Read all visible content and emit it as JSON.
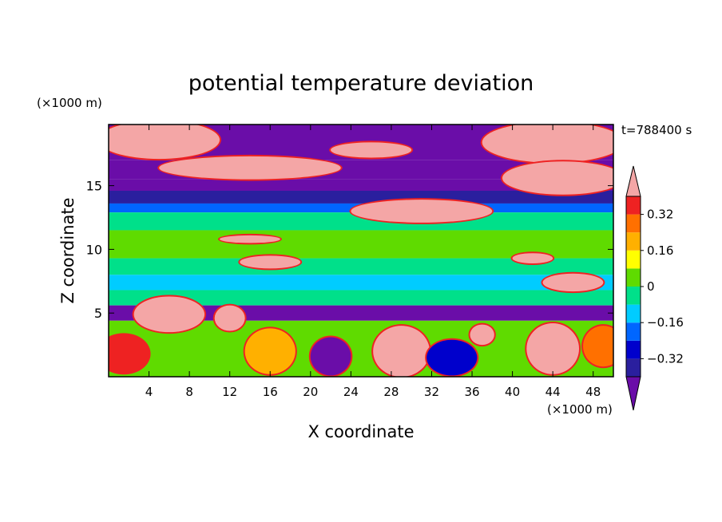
{
  "chart_data": {
    "type": "heatmap",
    "title": "potential temperature deviation",
    "xlabel": "X coordinate",
    "ylabel": "Z coordinate",
    "x_unit": "(×1000 m)",
    "y_unit": "(×1000 m)",
    "time_label": "t=788400 s",
    "xlim": [
      0,
      50
    ],
    "ylim": [
      0,
      19.8
    ],
    "x_ticks": [
      4,
      8,
      12,
      16,
      20,
      24,
      28,
      32,
      36,
      40,
      44,
      48
    ],
    "y_ticks": [
      5,
      10,
      15
    ],
    "colorbar": {
      "levels": [
        -0.48,
        -0.4,
        -0.32,
        -0.24,
        -0.16,
        -0.08,
        0,
        0.08,
        0.16,
        0.24,
        0.32,
        0.4
      ],
      "labels": [
        "0.32",
        "0.16",
        "0",
        "−0.16",
        "−0.32"
      ],
      "label_values": [
        0.32,
        0.16,
        0,
        -0.16,
        -0.32
      ],
      "colors": [
        "#6a0da8",
        "#2a1f9e",
        "#0000cc",
        "#0066ff",
        "#00ccff",
        "#00e08a",
        "#5fdb00",
        "#ffff00",
        "#ffb000",
        "#ff7000",
        "#ee2222",
        "#f4a6a6"
      ],
      "extends": "both"
    },
    "bands": [
      {
        "z_from": 17.0,
        "z_to": 19.8,
        "value": -0.44
      },
      {
        "z_from": 15.5,
        "z_to": 17.0,
        "value": -0.44
      },
      {
        "z_from": 14.6,
        "z_to": 15.5,
        "value": -0.44
      },
      {
        "z_from": 13.6,
        "z_to": 14.6,
        "value": -0.36
      },
      {
        "z_from": 12.9,
        "z_to": 13.6,
        "value": -0.2
      },
      {
        "z_from": 11.5,
        "z_to": 12.9,
        "value": -0.04
      },
      {
        "z_from": 9.3,
        "z_to": 11.5,
        "value": 0.04
      },
      {
        "z_from": 8.0,
        "z_to": 9.3,
        "value": -0.04
      },
      {
        "z_from": 6.8,
        "z_to": 8.0,
        "value": -0.12
      },
      {
        "z_from": 5.6,
        "z_to": 6.8,
        "value": -0.04
      },
      {
        "z_from": 4.4,
        "z_to": 5.6,
        "value": -0.44
      },
      {
        "z_from": 0.0,
        "z_to": 4.4,
        "value": 0.04
      }
    ],
    "blobs": [
      {
        "x": 5,
        "z": 18.6,
        "rx": 6,
        "rz": 1.5,
        "value": 0.44
      },
      {
        "x": 44,
        "z": 18.4,
        "rx": 7,
        "rz": 1.6,
        "value": 0.44
      },
      {
        "x": 14,
        "z": 16.4,
        "rx": 9,
        "rz": 0.9,
        "value": 0.44
      },
      {
        "x": 26,
        "z": 17.8,
        "rx": 4,
        "rz": 0.6,
        "value": 0.44
      },
      {
        "x": 45,
        "z": 15.6,
        "rx": 6,
        "rz": 1.3,
        "value": 0.44
      },
      {
        "x": 31,
        "z": 13.0,
        "rx": 7,
        "rz": 0.9,
        "value": 0.44
      },
      {
        "x": 14,
        "z": 10.8,
        "rx": 3,
        "rz": 0.3,
        "value": 0.44
      },
      {
        "x": 16,
        "z": 9.0,
        "rx": 3,
        "rz": 0.5,
        "value": 0.44
      },
      {
        "x": 42,
        "z": 9.3,
        "rx": 2,
        "rz": 0.4,
        "value": 0.44
      },
      {
        "x": 46,
        "z": 7.4,
        "rx": 3,
        "rz": 0.7,
        "value": 0.44
      },
      {
        "x": 6,
        "z": 4.9,
        "rx": 3.5,
        "rz": 1.4,
        "value": 0.44
      },
      {
        "x": 12,
        "z": 4.6,
        "rx": 1.5,
        "rz": 1.0,
        "value": 0.44
      },
      {
        "x": 29,
        "z": 2.0,
        "rx": 2.8,
        "rz": 2.0,
        "value": 0.44
      },
      {
        "x": 37,
        "z": 3.3,
        "rx": 1.2,
        "rz": 0.8,
        "value": 0.44
      },
      {
        "x": 44,
        "z": 2.2,
        "rx": 2.6,
        "rz": 2.0,
        "value": 0.44
      },
      {
        "x": 1.5,
        "z": 1.8,
        "rx": 2.5,
        "rz": 1.5,
        "value": 0.36
      },
      {
        "x": 16,
        "z": 2.0,
        "rx": 2.5,
        "rz": 1.8,
        "value": 0.2
      },
      {
        "x": 22,
        "z": 1.6,
        "rx": 2.0,
        "rz": 1.5,
        "value": -0.44
      },
      {
        "x": 34,
        "z": 1.5,
        "rx": 2.5,
        "rz": 1.4,
        "value": -0.28
      },
      {
        "x": 49,
        "z": 2.4,
        "rx": 2.0,
        "rz": 1.6,
        "value": 0.3
      }
    ]
  }
}
